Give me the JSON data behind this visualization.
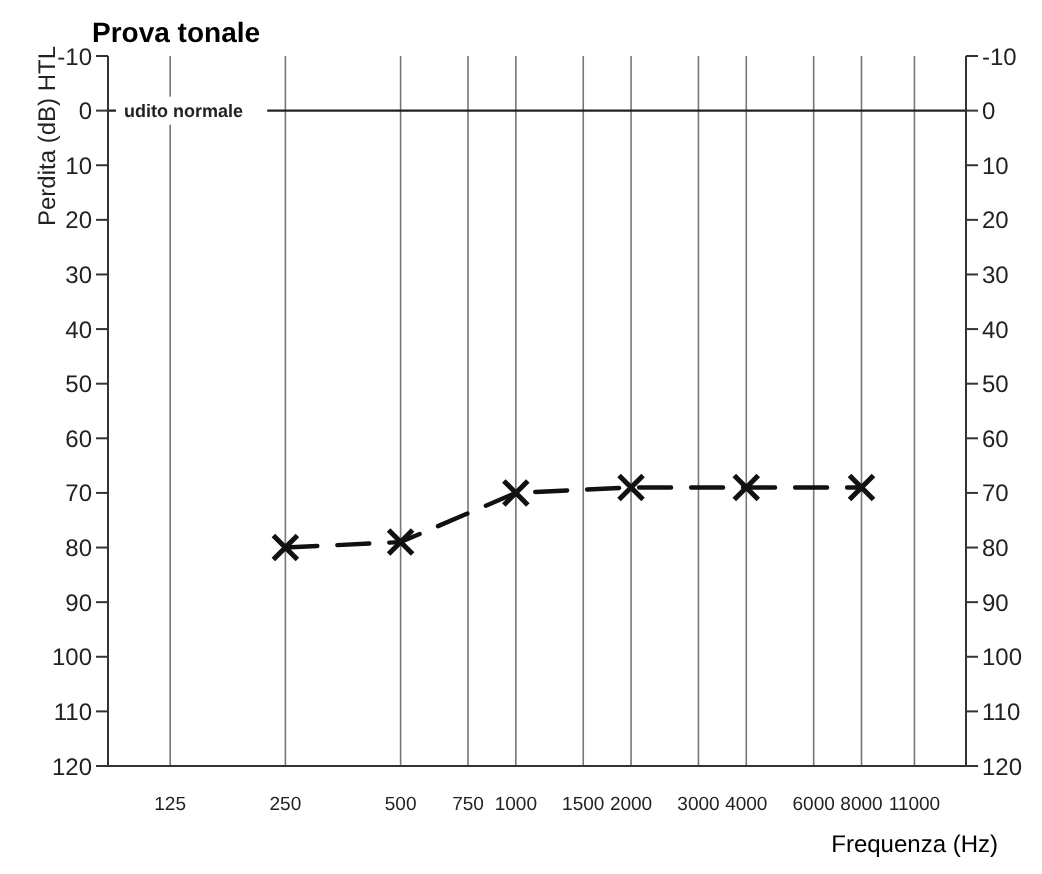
{
  "chart_data": {
    "type": "line",
    "title": "Prova tonale",
    "xlabel": "Frequenza (Hz)",
    "ylabel": "Perdita (dB) HTL",
    "x": [
      250,
      500,
      1000,
      2000,
      4000,
      8000
    ],
    "series": [
      {
        "color": "#111111",
        "values": [
          80,
          79,
          70,
          69,
          69,
          69
        ]
      }
    ],
    "log": "x",
    "xlim": [
      86,
      15000
    ],
    "xticks": [
      125,
      250,
      500,
      750,
      1000,
      1500,
      2000,
      3000,
      4000,
      6000,
      8000,
      11000
    ],
    "ylim": [
      120,
      -10
    ],
    "yticks": [
      -10,
      0,
      10,
      20,
      30,
      40,
      50,
      60,
      70,
      80,
      90,
      100,
      110,
      120
    ],
    "y2lim": [
      120,
      -10
    ],
    "y2ticks": [
      -10,
      0,
      10,
      20,
      30,
      40,
      50,
      60,
      70,
      80,
      90,
      100,
      110,
      120
    ],
    "ref_lines": [
      {
        "axis": "y",
        "value": 0,
        "label": "udito normale",
        "color": "#222222"
      }
    ],
    "grid": true,
    "legend": false,
    "marker": "cross",
    "line_style": "dashed"
  }
}
